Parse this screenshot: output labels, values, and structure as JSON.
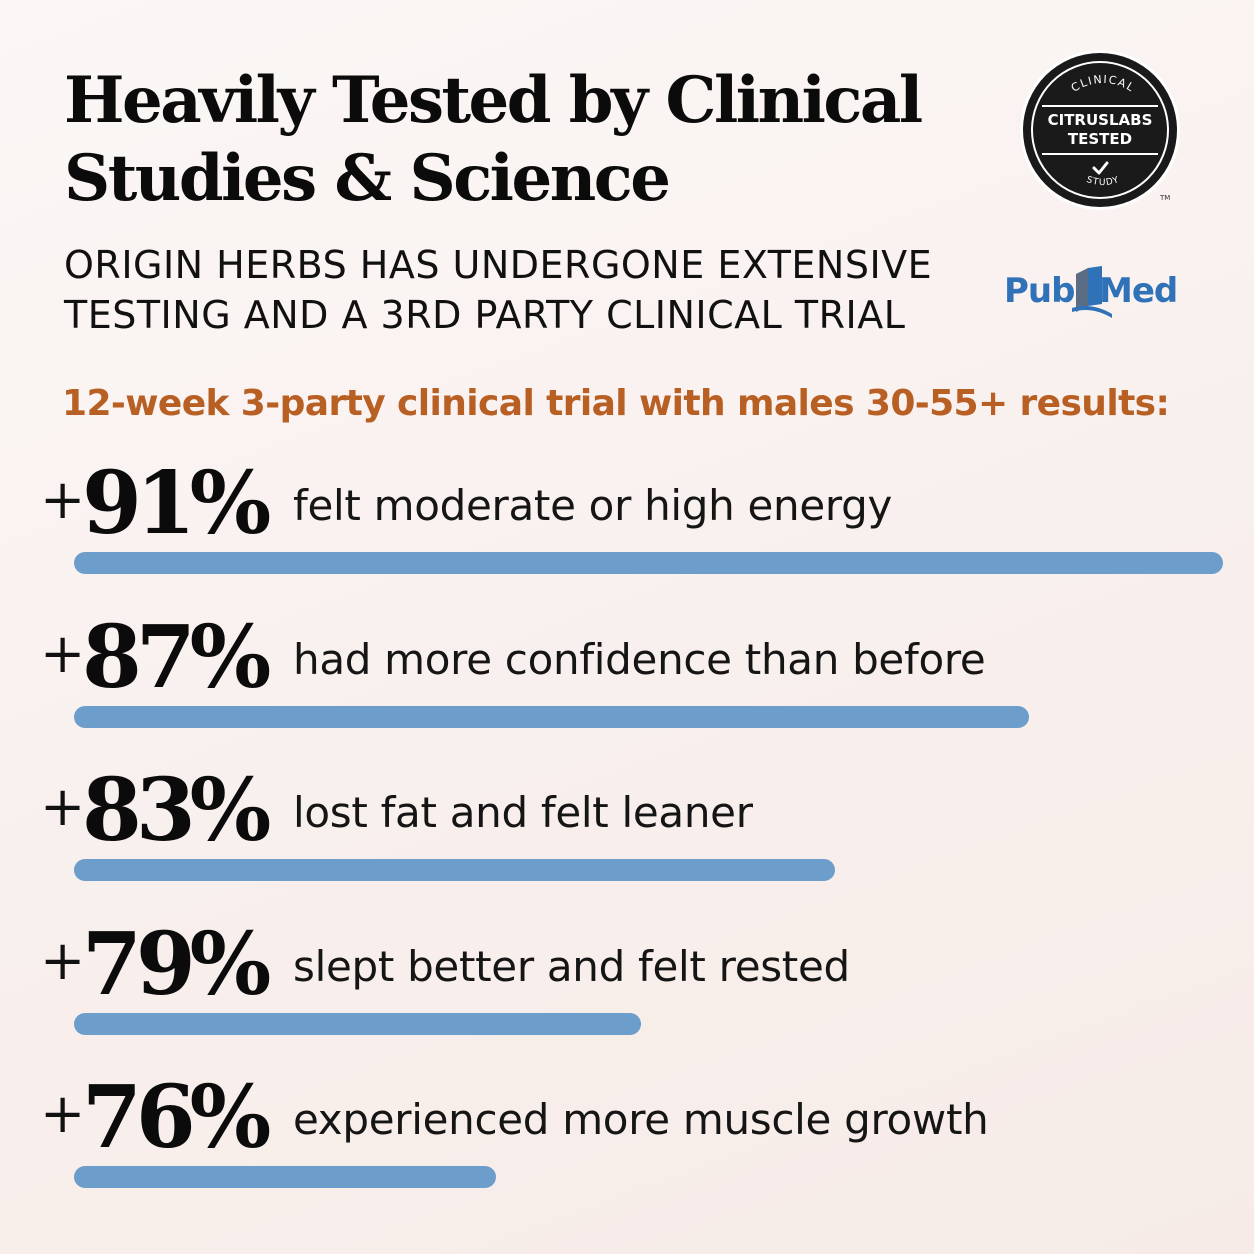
{
  "header": {
    "title_line1": "Heavily Tested by Clinical",
    "title_line2": "Studies & Science",
    "subtitle_line1": "ORIGIN HERBS HAS UNDERGONE EXTENSIVE",
    "subtitle_line2": "TESTING AND A 3RD PARTY CLINICAL TRIAL",
    "trial_caption": "12-week 3-party clinical trial with males 30-55+ results:"
  },
  "badge": {
    "top_text": "CLINICAL",
    "line1": "CITRUSLABS",
    "line2": "TESTED",
    "bottom_text": "STUDY",
    "trademark": "TM"
  },
  "pubmed": {
    "part1": "Pub",
    "part2": "Med"
  },
  "colors": {
    "bar": "#6d9dcb",
    "accent": "#b85f24",
    "pubmed_blue": "#2f72b8"
  },
  "chart_data": {
    "type": "bar",
    "orientation": "horizontal",
    "title": "",
    "xlabel": "",
    "ylabel": "",
    "xlim": [
      0,
      100
    ],
    "grid": false,
    "categories": [
      "felt moderate or high energy",
      "had more confidence than before",
      "lost fat and felt leaner",
      "slept better and felt rested",
      "experienced more muscle growth"
    ],
    "values": [
      91,
      87,
      83,
      79,
      76
    ],
    "value_labels": [
      "91%",
      "87%",
      "83%",
      "79%",
      "76%"
    ],
    "prefix": "+"
  }
}
